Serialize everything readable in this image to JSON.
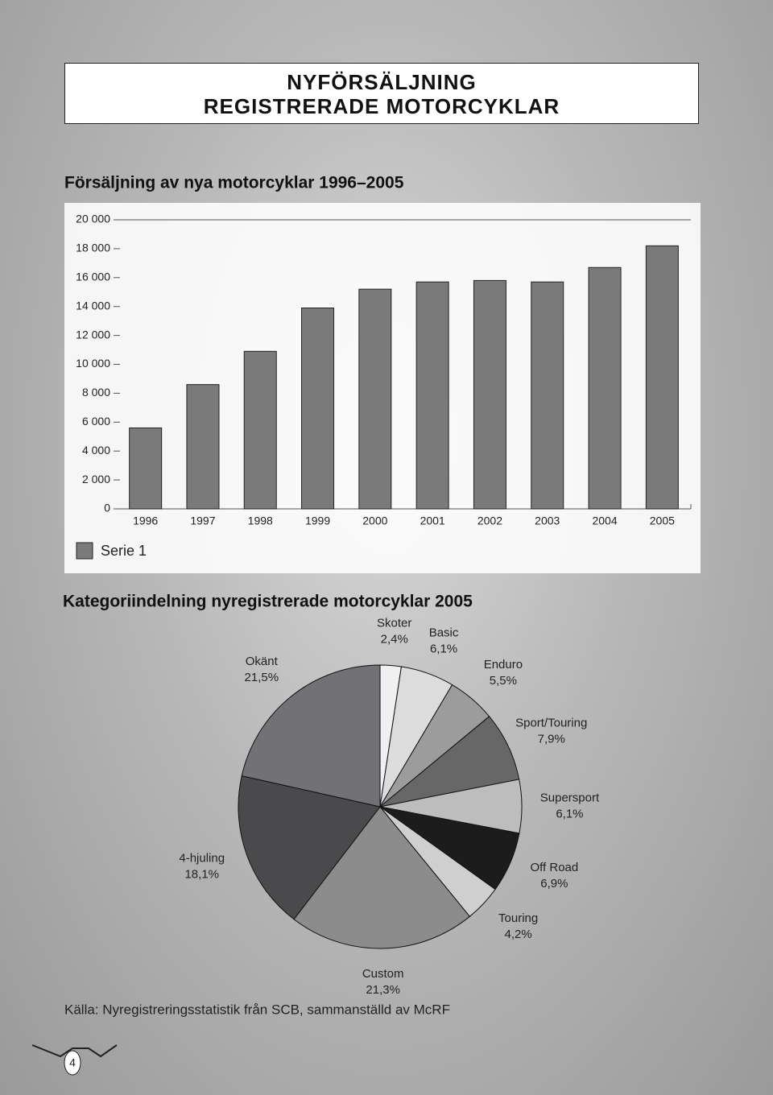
{
  "header": {
    "title_lines": [
      "NYFÖRSÄLJNING",
      "REGISTRERADE MOTORCYKLAR"
    ]
  },
  "chart_data": [
    {
      "type": "bar",
      "title": "Försäljning av nya motorcyklar 1996–2005",
      "categories": [
        "1996",
        "1997",
        "1998",
        "1999",
        "2000",
        "2001",
        "2002",
        "2003",
        "2004",
        "2005"
      ],
      "series": [
        {
          "name": "Serie 1",
          "color": "#7a7a7a",
          "values": [
            5600,
            8600,
            10900,
            13900,
            15200,
            15700,
            15800,
            15700,
            16700,
            18200
          ]
        }
      ],
      "ylim": [
        0,
        20000
      ],
      "yticks": [
        0,
        {
          "value": 2000,
          "label": "2 000"
        },
        {
          "value": 4000,
          "label": "4 000"
        },
        {
          "value": 6000,
          "label": "6 000"
        },
        {
          "value": 8000,
          "label": "8 000"
        },
        {
          "value": 10000,
          "label": "10 000"
        },
        {
          "value": 12000,
          "label": "12 000"
        },
        {
          "value": 14000,
          "label": "14 000"
        },
        {
          "value": 16000,
          "label": "16 000"
        },
        {
          "value": 18000,
          "label": "18 000"
        },
        {
          "value": 20000,
          "label": "20 000"
        }
      ]
    },
    {
      "type": "pie",
      "title": "Kategoriindelning nyregistrerade motorcyklar 2005",
      "categories": [
        "Skoter",
        "Basic",
        "Enduro",
        "Sport/Touring",
        "Supersport",
        "Off Road",
        "Touring",
        "Custom",
        "4-hjuling",
        "Okänt"
      ],
      "values": [
        2.4,
        6.1,
        5.5,
        7.9,
        6.1,
        6.9,
        4.2,
        21.3,
        18.1,
        21.5
      ],
      "value_labels": [
        "2,4%",
        "6,1%",
        "5,5%",
        "7,9%",
        "6,1%",
        "6,9%",
        "4,2%",
        "21,3%",
        "18,1%",
        "21,5%"
      ],
      "colors": [
        "#f0f0f0",
        "#dcdcdc",
        "#9c9c9c",
        "#676767",
        "#bdbdbd",
        "#1c1c1c",
        "#cfcfcf",
        "#8c8c8c",
        "#4a4a4c",
        "#727276"
      ]
    }
  ],
  "source": "Källa: Nyregistreringsstatistik från SCB, sammanställd av McRF",
  "page_number": 4
}
